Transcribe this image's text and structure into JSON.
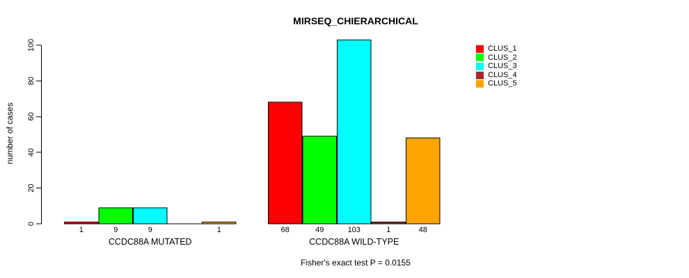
{
  "title": "MIRSEQ_CHIERARCHICAL",
  "chart_data": {
    "type": "bar",
    "title": "MIRSEQ_CHIERARCHICAL",
    "xlabel": "",
    "ylabel": "number of cases",
    "ylim": [
      0,
      100
    ],
    "yticks": [
      0,
      20,
      40,
      60,
      80,
      100
    ],
    "grid": false,
    "legend_position": "top-right",
    "bar_border_color": "#000000",
    "series": [
      {
        "name": "CLUS_1",
        "color": "#FF0000"
      },
      {
        "name": "CLUS_2",
        "color": "#00FF00"
      },
      {
        "name": "CLUS_3",
        "color": "#00FFFF"
      },
      {
        "name": "CLUS_4",
        "color": "#A52A2A"
      },
      {
        "name": "CLUS_5",
        "color": "#FFA500"
      }
    ],
    "groups": [
      {
        "label": "CCDC88A MUTATED",
        "key": "mutated",
        "values": [
          1,
          9,
          9,
          0,
          1
        ],
        "value_labels": [
          "1",
          "9",
          "9",
          "",
          "1"
        ]
      },
      {
        "label": "CCDC88A WILD-TYPE",
        "key": "wild-type",
        "values": [
          68,
          49,
          103,
          1,
          48
        ],
        "value_labels": [
          "68",
          "49",
          "103",
          "1",
          "48"
        ]
      }
    ],
    "annotation": "Fisher's exact test P = 0.0155"
  }
}
